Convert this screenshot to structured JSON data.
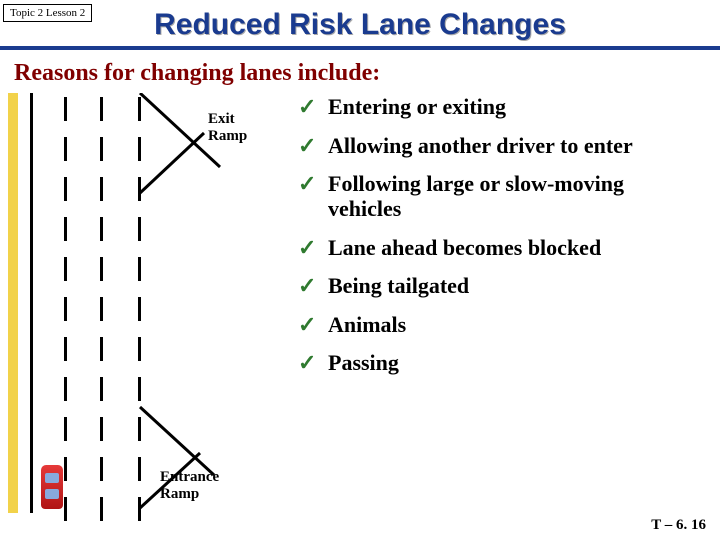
{
  "header": {
    "topic_tag": "Topic 2 Lesson 2",
    "title": "Reduced Risk Lane Changes"
  },
  "subtitle": "Reasons for changing lanes include:",
  "diagram": {
    "exit_label": "Exit\nRamp",
    "entrance_label": "Entrance\nRamp",
    "colors": {
      "shoulder": "#f2d24a",
      "road_line": "#000000",
      "car_body": "#d62222",
      "car_window": "#88aadd"
    },
    "dashed_lane_x": [
      56,
      92,
      130
    ],
    "dash_height": 24,
    "dash_gap": 16,
    "road_height": 420
  },
  "reasons": [
    "Entering or exiting",
    "Allowing another driver to enter",
    "Following large or slow-moving vehicles",
    "Lane ahead becomes blocked",
    "Being tailgated",
    "Animals",
    "Passing"
  ],
  "checkmark_color": "#2f7a2f",
  "footer": "T – 6. 16"
}
